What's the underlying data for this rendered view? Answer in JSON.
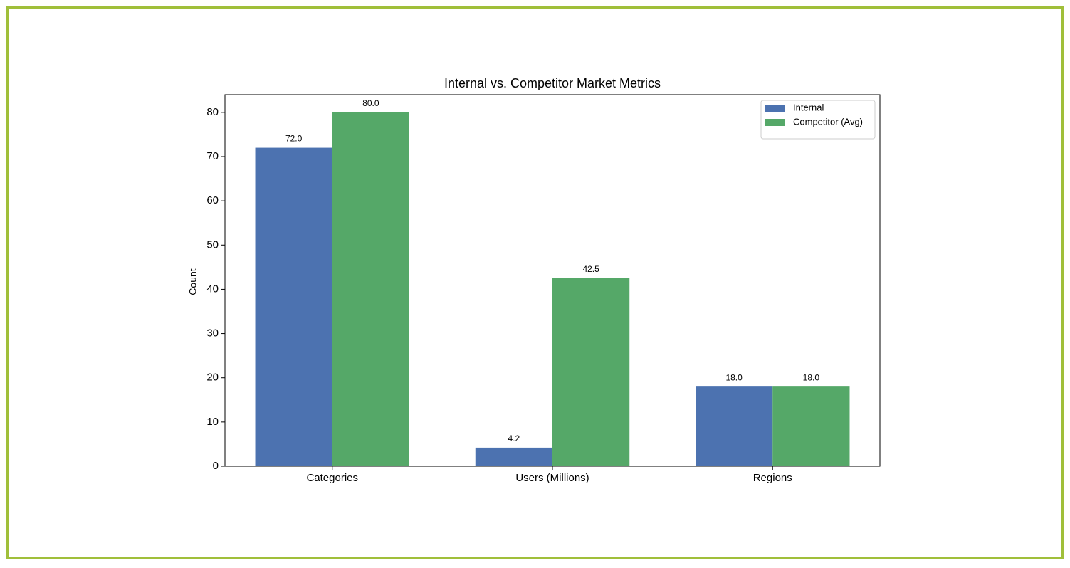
{
  "chart_data": {
    "type": "bar",
    "title": "Internal vs. Competitor Market Metrics",
    "y_label": "Count",
    "categories": [
      "Categories",
      "Users (Millions)",
      "Regions"
    ],
    "series": [
      {
        "name": "Internal",
        "color": "#4c72b0",
        "values": [
          72,
          4.2,
          18
        ],
        "value_labels": [
          "72.0",
          "4.2",
          "18.0"
        ]
      },
      {
        "name": "Competitor (Avg)",
        "color": "#55a868",
        "values": [
          80,
          42.5,
          18
        ],
        "value_labels": [
          "80.0",
          "42.5",
          "18.0"
        ]
      }
    ],
    "ylim": [
      0,
      84
    ],
    "yticks": [
      0,
      10,
      20,
      30,
      40,
      50,
      60,
      70,
      80
    ],
    "grid": false,
    "legend": "upper right"
  }
}
